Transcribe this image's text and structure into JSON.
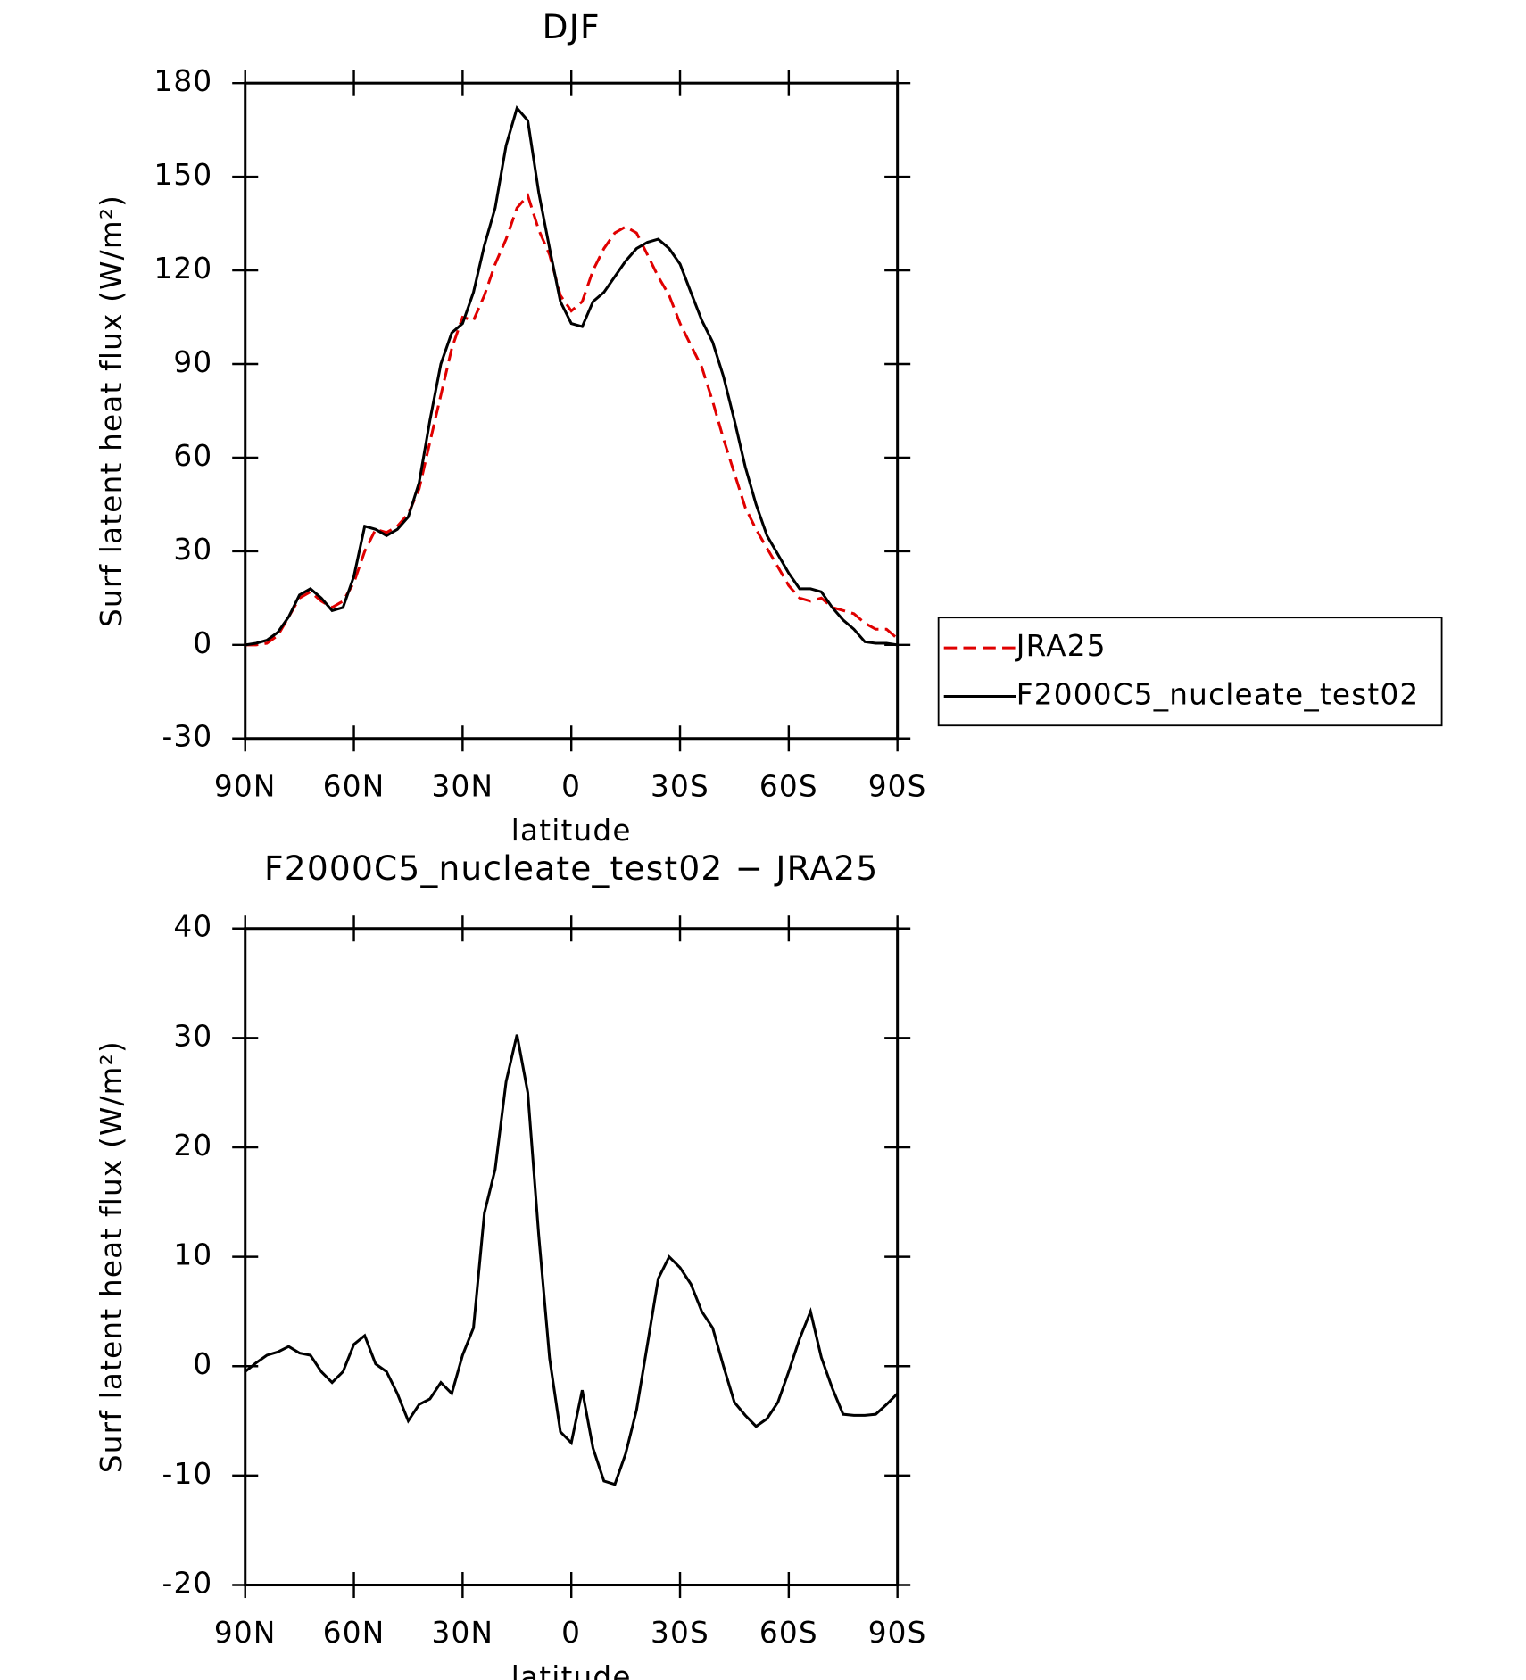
{
  "chart_data": [
    {
      "type": "line",
      "title": "DJF",
      "xlabel": "latitude",
      "ylabel": "Surf latent heat flux (W/m²)",
      "x": [
        90,
        87,
        84,
        81,
        78,
        75,
        72,
        69,
        66,
        63,
        60,
        57,
        54,
        51,
        48,
        45,
        42,
        39,
        36,
        33,
        30,
        27,
        24,
        21,
        18,
        15,
        12,
        9,
        6,
        3,
        0,
        -3,
        -6,
        -9,
        -12,
        -15,
        -18,
        -21,
        -24,
        -27,
        -30,
        -33,
        -36,
        -39,
        -42,
        -45,
        -48,
        -51,
        -54,
        -57,
        -60,
        -63,
        -66,
        -69,
        -72,
        -75,
        -78,
        -81,
        -84,
        -87,
        -90
      ],
      "series": [
        {
          "name": "JRA25",
          "color": "#e00000",
          "line_style": "dashed",
          "values": [
            0,
            0,
            0.5,
            3,
            9,
            15,
            17,
            14,
            12,
            14,
            20,
            30,
            37,
            36,
            38,
            42,
            50,
            65,
            80,
            95,
            105,
            104,
            112,
            122,
            130,
            140,
            144,
            133,
            125,
            112,
            107,
            110,
            120,
            127,
            132,
            134,
            132,
            125,
            118,
            112,
            103,
            96,
            89,
            78,
            66,
            55,
            44,
            37,
            31,
            25,
            19,
            15,
            14,
            15,
            12,
            11,
            10,
            7,
            5,
            5,
            2
          ]
        },
        {
          "name": "F2000C5_nucleate_test02",
          "color": "#000000",
          "line_style": "solid",
          "values": [
            0,
            0.5,
            1.5,
            4,
            9,
            16,
            18,
            15,
            11,
            12,
            22,
            38,
            37,
            35,
            37,
            41,
            52,
            72,
            90,
            100,
            103,
            113,
            128,
            140,
            160,
            172,
            168,
            145,
            127,
            110,
            103,
            102,
            110,
            113,
            118,
            123,
            127,
            129,
            130,
            127,
            122,
            113,
            104,
            97,
            86,
            72,
            57,
            45,
            35,
            29,
            23,
            18,
            18,
            17,
            12,
            8,
            5,
            1,
            0.5,
            0.5,
            0
          ]
        }
      ],
      "xlim": [
        90,
        -90
      ],
      "xticks": [
        {
          "value": 90,
          "label": "90N"
        },
        {
          "value": 60,
          "label": "60N"
        },
        {
          "value": 30,
          "label": "30N"
        },
        0,
        {
          "value": -30,
          "label": "30S"
        },
        {
          "value": -60,
          "label": "60S"
        },
        {
          "value": -90,
          "label": "90S"
        }
      ],
      "ylim": [
        -30,
        180
      ],
      "yticks": [
        -30,
        0,
        30,
        60,
        90,
        120,
        150,
        180
      ],
      "legend": "right"
    },
    {
      "type": "line",
      "title": "F2000C5_nucleate_test02 − JRA25",
      "xlabel": "latitude",
      "ylabel": "Surf latent heat flux (W/m²)",
      "x": [
        90,
        87,
        84,
        81,
        78,
        75,
        72,
        69,
        66,
        63,
        60,
        57,
        54,
        51,
        48,
        45,
        42,
        39,
        36,
        33,
        30,
        27,
        24,
        21,
        18,
        15,
        12,
        9,
        6,
        3,
        0,
        -3,
        -6,
        -9,
        -12,
        -15,
        -18,
        -21,
        -24,
        -27,
        -30,
        -33,
        -36,
        -39,
        -42,
        -45,
        -48,
        -51,
        -54,
        -57,
        -60,
        -63,
        -66,
        -69,
        -72,
        -75,
        -78,
        -81,
        -84,
        -87,
        -90
      ],
      "series": [
        {
          "color": "#000000",
          "line_style": "solid",
          "values": [
            -0.5,
            0.3,
            1,
            1.3,
            1.8,
            1.2,
            1,
            -0.5,
            -1.5,
            -0.5,
            2,
            2.8,
            0.2,
            -0.5,
            -2.5,
            -5,
            -3.5,
            -3,
            -1.5,
            -2.5,
            1,
            3.5,
            14,
            18,
            26,
            30.3,
            25,
            12,
            0.7,
            -6,
            -7,
            -2.2,
            -7.5,
            -10.5,
            -10.8,
            -8,
            -4,
            2,
            8,
            10,
            9,
            7.5,
            5,
            3.5,
            0,
            -3.3,
            -4.5,
            -5.5,
            -4.8,
            -3.3,
            -0.5,
            2.5,
            5,
            0.8,
            -2,
            -4.4,
            -4.5,
            -4.5,
            -4.4,
            -3.5,
            -2.5
          ]
        }
      ],
      "xlim": [
        90,
        -90
      ],
      "xticks": [
        {
          "value": 90,
          "label": "90N"
        },
        {
          "value": 60,
          "label": "60N"
        },
        {
          "value": 30,
          "label": "30N"
        },
        0,
        {
          "value": -30,
          "label": "30S"
        },
        {
          "value": -60,
          "label": "60S"
        },
        {
          "value": -90,
          "label": "90S"
        }
      ],
      "ylim": [
        -20,
        40
      ],
      "yticks": [
        -20,
        -10,
        0,
        10,
        20,
        30,
        40
      ]
    }
  ]
}
